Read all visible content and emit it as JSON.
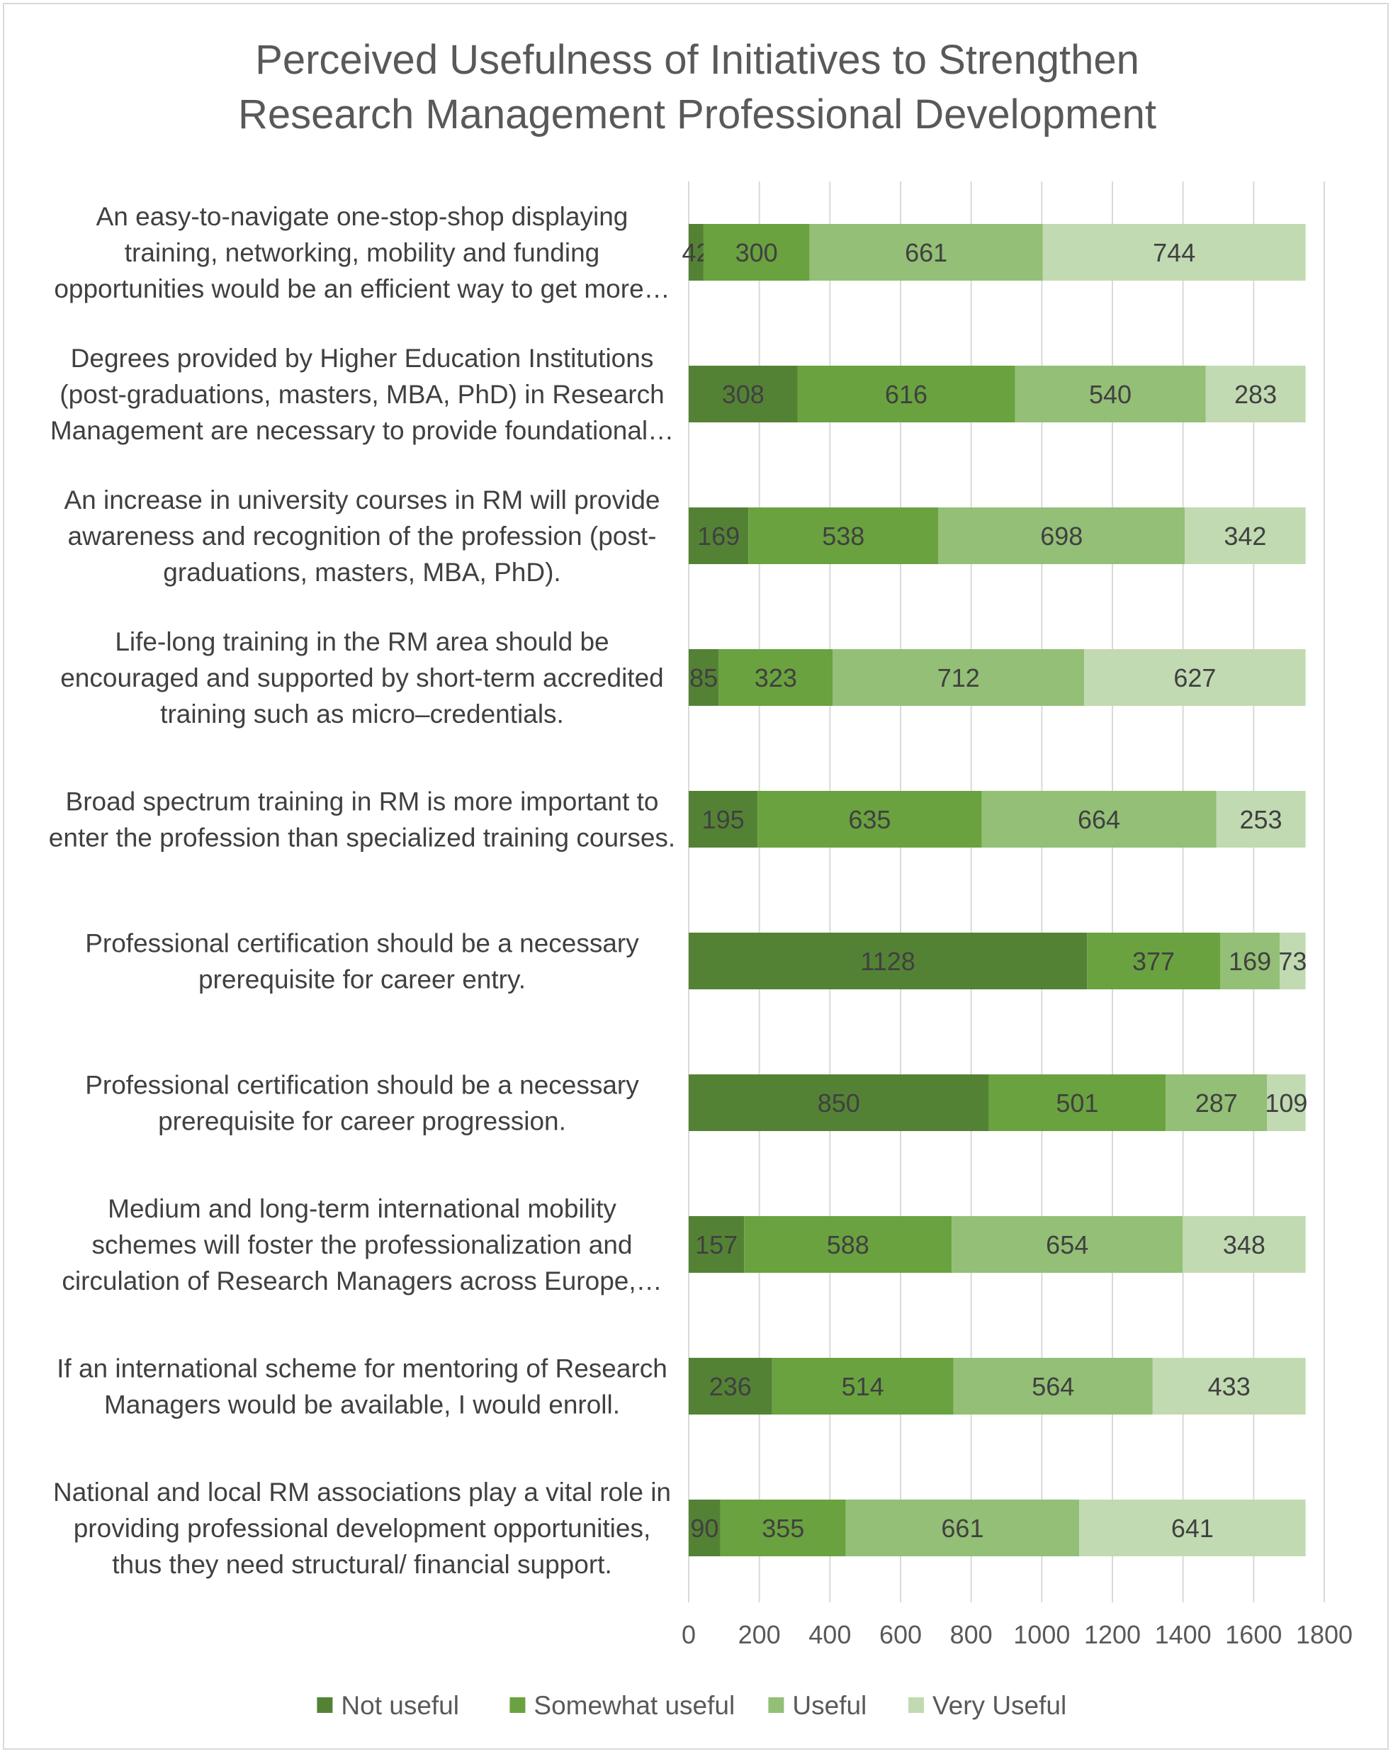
{
  "chart_data": {
    "type": "bar",
    "orientation": "horizontal",
    "stacked": true,
    "title": "Perceived Usefulness of Initiatives to Strengthen Research Management Professional Development",
    "title_lines": [
      "Perceived Usefulness of Initiatives to Strengthen",
      "Research Management Professional Development"
    ],
    "categories": [
      [
        "An easy-to-navigate one-stop-shop displaying",
        "training, networking, mobility and funding",
        "opportunities would be an efficient way to get more…"
      ],
      [
        "Degrees provided by Higher Education Institutions",
        "(post-graduations, masters, MBA, PhD) in Research",
        "Management are necessary to provide foundational…"
      ],
      [
        "An increase in university courses in RM will provide",
        "awareness and recognition of the profession (post-",
        "graduations, masters, MBA, PhD)."
      ],
      [
        "Life-long training in the RM area should be",
        "encouraged and supported by short-term accredited",
        "training such as micro–credentials."
      ],
      [
        "Broad spectrum training in RM is more important to",
        "enter the profession than specialized training courses."
      ],
      [
        "Professional certification should be a necessary",
        "prerequisite for career entry."
      ],
      [
        "Professional certification should be a necessary",
        "prerequisite for career progression."
      ],
      [
        "Medium and long-term international mobility",
        "schemes will foster the professionalization and",
        "circulation of Research Managers across Europe,…"
      ],
      [
        "If an international scheme for mentoring of Research",
        "Managers would be available, I would enroll."
      ],
      [
        "National and local RM associations play a vital role in",
        "providing professional development opportunities,",
        "thus they need structural/ financial support."
      ]
    ],
    "series": [
      {
        "name": "Not useful",
        "color": "#548235",
        "values": [
          42,
          308,
          169,
          85,
          195,
          1128,
          850,
          157,
          236,
          90
        ]
      },
      {
        "name": "Somewhat useful",
        "color": "#6aa23f",
        "values": [
          300,
          616,
          538,
          323,
          635,
          377,
          501,
          588,
          514,
          355
        ]
      },
      {
        "name": "Useful",
        "color": "#93bf76",
        "values": [
          661,
          540,
          698,
          712,
          664,
          169,
          287,
          654,
          564,
          661
        ]
      },
      {
        "name": "Very Useful",
        "color": "#c1dab2",
        "values": [
          744,
          283,
          342,
          627,
          253,
          73,
          109,
          348,
          433,
          641
        ]
      }
    ],
    "xlim": [
      0,
      1800
    ],
    "x_ticks": [
      "0",
      "200",
      "400",
      "600",
      "800",
      "1000",
      "1200",
      "1400",
      "1600",
      "1800"
    ],
    "grid": true,
    "legend_position": "bottom",
    "xlabel": "",
    "ylabel": ""
  }
}
